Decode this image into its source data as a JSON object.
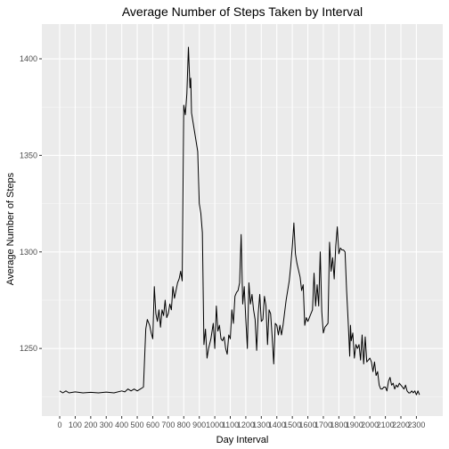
{
  "chart_data": {
    "type": "line",
    "title": "Average Number of Steps Taken by Interval",
    "xlabel": "Day Interval",
    "ylabel": "Average Number of Steps",
    "xlim": [
      -115,
      2470
    ],
    "ylim": [
      1215,
      1418
    ],
    "x_ticks": [
      0,
      100,
      200,
      300,
      400,
      500,
      600,
      700,
      800,
      900,
      1000,
      1100,
      1200,
      1300,
      1400,
      1500,
      1600,
      1700,
      1800,
      1900,
      2000,
      2100,
      2200,
      2300
    ],
    "x_tick_labels": [
      "0",
      "100",
      "200",
      "300",
      "400",
      "500",
      "600",
      "700",
      "800",
      "900",
      "1000",
      "1100",
      "1200",
      "1300",
      "1400",
      "1500",
      "1600",
      "1700",
      "1800",
      "1900",
      "2000",
      "2100",
      "2200",
      "2300"
    ],
    "y_ticks": [
      1250,
      1300,
      1350,
      1400
    ],
    "y_tick_labels": [
      "1250",
      "1300",
      "1350",
      "1400"
    ],
    "grid": true,
    "series_color": "#000000",
    "panel_color": "#ebebeb",
    "points": [
      [
        0,
        1228
      ],
      [
        20,
        1227
      ],
      [
        40,
        1228
      ],
      [
        60,
        1227
      ],
      [
        100,
        1227.5
      ],
      [
        150,
        1227
      ],
      [
        200,
        1227.3
      ],
      [
        250,
        1227
      ],
      [
        300,
        1227.4
      ],
      [
        350,
        1227
      ],
      [
        400,
        1228
      ],
      [
        420,
        1227.5
      ],
      [
        440,
        1229
      ],
      [
        460,
        1228
      ],
      [
        480,
        1229
      ],
      [
        500,
        1228
      ],
      [
        520,
        1229
      ],
      [
        540,
        1230
      ],
      [
        555,
        1260
      ],
      [
        565,
        1265
      ],
      [
        580,
        1262
      ],
      [
        590,
        1258
      ],
      [
        600,
        1255
      ],
      [
        610,
        1282
      ],
      [
        620,
        1268
      ],
      [
        630,
        1264
      ],
      [
        640,
        1270
      ],
      [
        650,
        1261
      ],
      [
        660,
        1270
      ],
      [
        670,
        1267
      ],
      [
        680,
        1275
      ],
      [
        690,
        1266
      ],
      [
        700,
        1268
      ],
      [
        710,
        1273
      ],
      [
        720,
        1270
      ],
      [
        730,
        1282
      ],
      [
        740,
        1276
      ],
      [
        750,
        1280
      ],
      [
        760,
        1284
      ],
      [
        770,
        1286
      ],
      [
        780,
        1290
      ],
      [
        790,
        1285
      ],
      [
        800,
        1376
      ],
      [
        810,
        1371
      ],
      [
        820,
        1382
      ],
      [
        830,
        1406
      ],
      [
        840,
        1385
      ],
      [
        845,
        1390
      ],
      [
        850,
        1372
      ],
      [
        870,
        1362
      ],
      [
        890,
        1352
      ],
      [
        900,
        1325
      ],
      [
        910,
        1320
      ],
      [
        920,
        1310
      ],
      [
        930,
        1252
      ],
      [
        940,
        1260
      ],
      [
        950,
        1245
      ],
      [
        960,
        1250
      ],
      [
        975,
        1255
      ],
      [
        990,
        1263
      ],
      [
        1000,
        1250
      ],
      [
        1010,
        1272
      ],
      [
        1020,
        1259
      ],
      [
        1030,
        1262
      ],
      [
        1040,
        1255
      ],
      [
        1050,
        1254
      ],
      [
        1060,
        1256
      ],
      [
        1070,
        1250
      ],
      [
        1080,
        1247
      ],
      [
        1090,
        1257
      ],
      [
        1100,
        1255
      ],
      [
        1110,
        1270
      ],
      [
        1120,
        1263
      ],
      [
        1130,
        1277
      ],
      [
        1140,
        1279
      ],
      [
        1150,
        1280
      ],
      [
        1160,
        1284
      ],
      [
        1170,
        1309
      ],
      [
        1180,
        1273
      ],
      [
        1190,
        1282
      ],
      [
        1200,
        1265
      ],
      [
        1210,
        1250
      ],
      [
        1220,
        1284
      ],
      [
        1230,
        1273
      ],
      [
        1240,
        1278
      ],
      [
        1250,
        1270
      ],
      [
        1260,
        1265
      ],
      [
        1270,
        1249
      ],
      [
        1280,
        1268
      ],
      [
        1290,
        1278
      ],
      [
        1300,
        1264
      ],
      [
        1310,
        1265
      ],
      [
        1320,
        1277
      ],
      [
        1330,
        1272
      ],
      [
        1340,
        1252
      ],
      [
        1350,
        1270
      ],
      [
        1360,
        1268
      ],
      [
        1370,
        1256
      ],
      [
        1380,
        1242
      ],
      [
        1390,
        1263
      ],
      [
        1400,
        1262
      ],
      [
        1410,
        1257
      ],
      [
        1420,
        1262
      ],
      [
        1430,
        1257
      ],
      [
        1440,
        1262
      ],
      [
        1460,
        1275
      ],
      [
        1480,
        1285
      ],
      [
        1490,
        1293
      ],
      [
        1500,
        1303
      ],
      [
        1510,
        1315
      ],
      [
        1520,
        1299
      ],
      [
        1530,
        1294
      ],
      [
        1550,
        1287
      ],
      [
        1560,
        1280
      ],
      [
        1570,
        1283
      ],
      [
        1580,
        1262
      ],
      [
        1590,
        1266
      ],
      [
        1600,
        1264
      ],
      [
        1610,
        1266
      ],
      [
        1620,
        1268
      ],
      [
        1630,
        1270
      ],
      [
        1640,
        1289
      ],
      [
        1650,
        1272
      ],
      [
        1660,
        1283
      ],
      [
        1670,
        1272
      ],
      [
        1680,
        1300
      ],
      [
        1690,
        1269
      ],
      [
        1700,
        1258
      ],
      [
        1710,
        1261
      ],
      [
        1720,
        1262
      ],
      [
        1730,
        1263
      ],
      [
        1740,
        1305
      ],
      [
        1750,
        1290
      ],
      [
        1760,
        1297
      ],
      [
        1770,
        1286
      ],
      [
        1780,
        1303
      ],
      [
        1790,
        1313
      ],
      [
        1800,
        1299
      ],
      [
        1810,
        1302
      ],
      [
        1820,
        1301
      ],
      [
        1830,
        1301
      ],
      [
        1840,
        1300
      ],
      [
        1850,
        1280
      ],
      [
        1860,
        1264
      ],
      [
        1870,
        1246
      ],
      [
        1875,
        1262
      ],
      [
        1880,
        1254
      ],
      [
        1890,
        1258
      ],
      [
        1900,
        1245
      ],
      [
        1910,
        1252
      ],
      [
        1920,
        1250
      ],
      [
        1930,
        1252
      ],
      [
        1940,
        1244
      ],
      [
        1950,
        1257
      ],
      [
        1960,
        1242
      ],
      [
        1970,
        1256
      ],
      [
        1980,
        1243
      ],
      [
        1990,
        1244
      ],
      [
        2000,
        1245
      ],
      [
        2010,
        1243
      ],
      [
        2020,
        1238
      ],
      [
        2030,
        1243
      ],
      [
        2040,
        1236
      ],
      [
        2050,
        1238
      ],
      [
        2060,
        1231
      ],
      [
        2070,
        1229
      ],
      [
        2080,
        1229
      ],
      [
        2090,
        1230
      ],
      [
        2100,
        1230
      ],
      [
        2110,
        1228
      ],
      [
        2120,
        1233
      ],
      [
        2130,
        1235
      ],
      [
        2140,
        1231
      ],
      [
        2150,
        1232
      ],
      [
        2160,
        1229
      ],
      [
        2170,
        1231
      ],
      [
        2180,
        1230
      ],
      [
        2190,
        1232
      ],
      [
        2200,
        1231
      ],
      [
        2210,
        1230
      ],
      [
        2220,
        1229
      ],
      [
        2230,
        1231
      ],
      [
        2240,
        1228
      ],
      [
        2250,
        1227
      ],
      [
        2260,
        1227
      ],
      [
        2270,
        1228
      ],
      [
        2280,
        1227
      ],
      [
        2290,
        1228
      ],
      [
        2300,
        1226
      ],
      [
        2310,
        1228
      ],
      [
        2320,
        1226
      ]
    ]
  }
}
